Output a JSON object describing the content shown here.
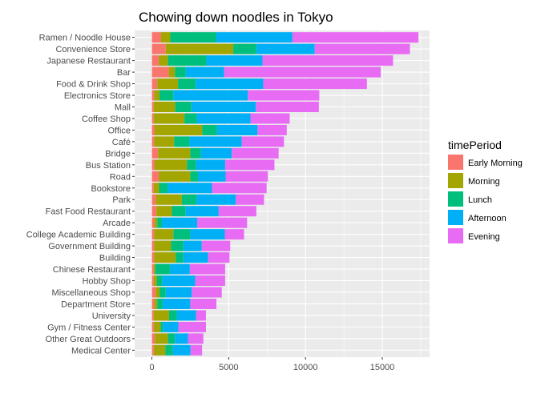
{
  "chart_data": {
    "type": "bar",
    "orientation": "horizontal",
    "stacked": true,
    "title": "Chowing down noodles in Tokyo",
    "xlabel": "",
    "ylabel": "",
    "xlim": [
      -1500,
      18000
    ],
    "xticks": [
      0,
      5000,
      10000,
      15000
    ],
    "xtick_labels": [
      "0",
      "5000",
      "10000",
      "15000"
    ],
    "grid": true,
    "legend": {
      "title": "timePeriod",
      "placement": "right"
    },
    "categories": [
      "Ramen /  Noodle House",
      "Convenience Store",
      "Japanese Restaurant",
      "Bar",
      "Food & Drink Shop",
      "Electronics Store",
      "Mall",
      "Coffee Shop",
      "Office",
      "Café",
      "Bridge",
      "Bus Station",
      "Road",
      "Bookstore",
      "Park",
      "Fast Food Restaurant",
      "Arcade",
      "College Academic Building",
      "Government Building",
      "Building",
      "Chinese Restaurant",
      "Hobby Shop",
      "Miscellaneous Shop",
      "Department Store",
      "University",
      "Gym / Fitness Center",
      "Other Great Outdoors",
      "Medical Center"
    ],
    "series": [
      {
        "name": "Early Morning",
        "color": "#F8766D",
        "values": [
          600,
          900,
          450,
          1100,
          350,
          150,
          120,
          120,
          180,
          150,
          400,
          180,
          450,
          120,
          250,
          300,
          150,
          150,
          150,
          150,
          120,
          120,
          250,
          150,
          120,
          120,
          200,
          120
        ]
      },
      {
        "name": "Morning",
        "color": "#A3A500",
        "values": [
          600,
          4400,
          600,
          400,
          1350,
          350,
          1400,
          2000,
          3100,
          1300,
          2100,
          2100,
          2050,
          350,
          1700,
          1000,
          200,
          1250,
          1100,
          1400,
          100,
          200,
          250,
          200,
          1000,
          450,
          850,
          750
        ]
      },
      {
        "name": "Lunch",
        "color": "#00BF7D",
        "values": [
          3000,
          1500,
          2500,
          700,
          1150,
          900,
          1050,
          800,
          950,
          1000,
          700,
          600,
          500,
          550,
          950,
          900,
          300,
          1100,
          800,
          500,
          950,
          350,
          400,
          350,
          500,
          150,
          450,
          500
        ]
      },
      {
        "name": "Afternoon",
        "color": "#00B0F6",
        "values": [
          4950,
          3800,
          3650,
          2500,
          4400,
          4850,
          4200,
          3500,
          2650,
          3400,
          2000,
          1900,
          1800,
          2900,
          2550,
          2150,
          2300,
          2250,
          1200,
          1600,
          1300,
          2150,
          1700,
          1800,
          1250,
          1000,
          850,
          1150
        ]
      },
      {
        "name": "Evening",
        "color": "#E76BF3",
        "values": [
          8200,
          6200,
          8500,
          10200,
          6750,
          4650,
          4100,
          2550,
          1900,
          2750,
          3050,
          3200,
          2750,
          3550,
          1850,
          2450,
          3250,
          1250,
          1850,
          1400,
          2300,
          1950,
          1950,
          1700,
          650,
          1800,
          1000,
          750
        ]
      }
    ]
  }
}
